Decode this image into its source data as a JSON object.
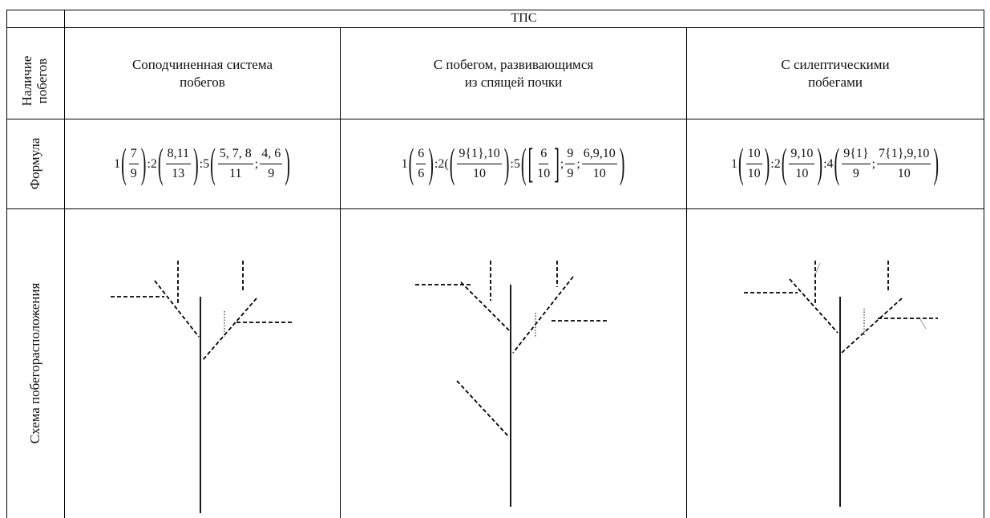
{
  "table": {
    "group_header": "ТПС",
    "row_labels": [
      "Наличие\nпобегов",
      "Формула",
      "Схема побегорасположения"
    ],
    "types": [
      "Соподчиненная система\nпобегов",
      "С побегом, развивающимся\nиз спящей почки",
      "С силептическими\nпобегами"
    ],
    "formulas": [
      [
        "1",
        {
          "open": "(",
          "close": ")",
          "items": [
            {
              "num": "7",
              "den": "9"
            }
          ]
        },
        ":2",
        {
          "open": "(",
          "close": ")",
          "items": [
            {
              "num": "8,11",
              "den": "13"
            }
          ]
        },
        ":5",
        {
          "open": "(",
          "close": ")",
          "items": [
            {
              "num": "5, 7, 8",
              "den": "11"
            },
            ";",
            {
              "num": "4, 6",
              "den": "9"
            }
          ]
        }
      ],
      [
        "1",
        {
          "open": "(",
          "close": ")",
          "items": [
            {
              "num": "6",
              "den": "6"
            }
          ]
        },
        ":2(",
        {
          "open": "(",
          "close": ")",
          "items": [
            {
              "num": "9{1},10",
              "den": "10"
            }
          ]
        },
        ":5",
        {
          "open": "(",
          "close": ")",
          "items": [
            {
              "open": "[",
              "close": "]",
              "items": [
                {
                  "num": "6",
                  "den": "10"
                }
              ]
            },
            ";",
            {
              "num": "9",
              "den": "9"
            },
            ";",
            {
              "num": "6,9,10",
              "den": "10"
            }
          ]
        }
      ],
      [
        "1",
        {
          "open": "(",
          "close": ")",
          "items": [
            {
              "num": "10",
              "den": "10"
            }
          ]
        },
        ":2",
        {
          "open": "(",
          "close": ")",
          "items": [
            {
              "num": "9,10",
              "den": "10"
            }
          ]
        },
        ":4",
        {
          "open": "(",
          "close": ")",
          "items": [
            {
              "num": "9{1}",
              "den": "9"
            },
            ";",
            {
              "num": "7{1},9,10",
              "den": "10"
            }
          ]
        }
      ]
    ]
  }
}
